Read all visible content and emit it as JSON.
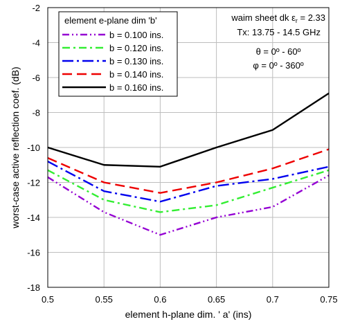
{
  "chart_data": {
    "type": "line",
    "xlabel": "element h-plane dim. ' a'  (ins)",
    "ylabel": "worst-case active reflection coef. (dB)",
    "xlim": [
      0.5,
      0.75
    ],
    "ylim": [
      -18,
      -2
    ],
    "x_ticks": [
      "0.5",
      "0.55",
      "0.6",
      "0.65",
      "0.7",
      "0.75"
    ],
    "y_ticks": [
      "-18",
      "-16",
      "-14",
      "-12",
      "-10",
      "-8",
      "-6",
      "-4",
      "-2"
    ],
    "x": [
      0.5,
      0.55,
      0.6,
      0.65,
      0.7,
      0.75
    ],
    "legend_title": "element e-plane dim 'b'",
    "legend_position": "top-left",
    "grid": true,
    "series": [
      {
        "name": "b = 0.100 ins.",
        "color": "#9400D3",
        "dash": "dash-dot-dot",
        "values": [
          -11.7,
          -13.7,
          -15.0,
          -14.0,
          -13.4,
          -11.6
        ]
      },
      {
        "name": "b = 0.120 ins.",
        "color": "#33EE33",
        "dash": "dash-dot",
        "values": [
          -11.3,
          -13.0,
          -13.7,
          -13.3,
          -12.3,
          -11.3
        ]
      },
      {
        "name": "b = 0.130 ins.",
        "color": "#0000EE",
        "dash": "long-dash-dot",
        "values": [
          -10.8,
          -12.5,
          -13.1,
          -12.2,
          -11.8,
          -11.1
        ]
      },
      {
        "name": "b = 0.140 ins.",
        "color": "#EE0000",
        "dash": "dash",
        "values": [
          -10.6,
          -12.0,
          -12.6,
          -12.0,
          -11.2,
          -10.1
        ]
      },
      {
        "name": "b = 0.160 ins.",
        "color": "#000000",
        "dash": "solid",
        "values": [
          -10.0,
          -11.0,
          -11.1,
          -10.0,
          -9.0,
          -6.9
        ]
      }
    ],
    "annotations": {
      "line1_a": "waim sheet dk ",
      "line1_eps": "ε",
      "line1_sub": "r",
      "line1_b": " = 2.33",
      "line2": "Tx: 13.75 - 14.5 GHz",
      "theta": "θ = 0º - 60º",
      "phi": "φ = 0º - 360º"
    }
  }
}
